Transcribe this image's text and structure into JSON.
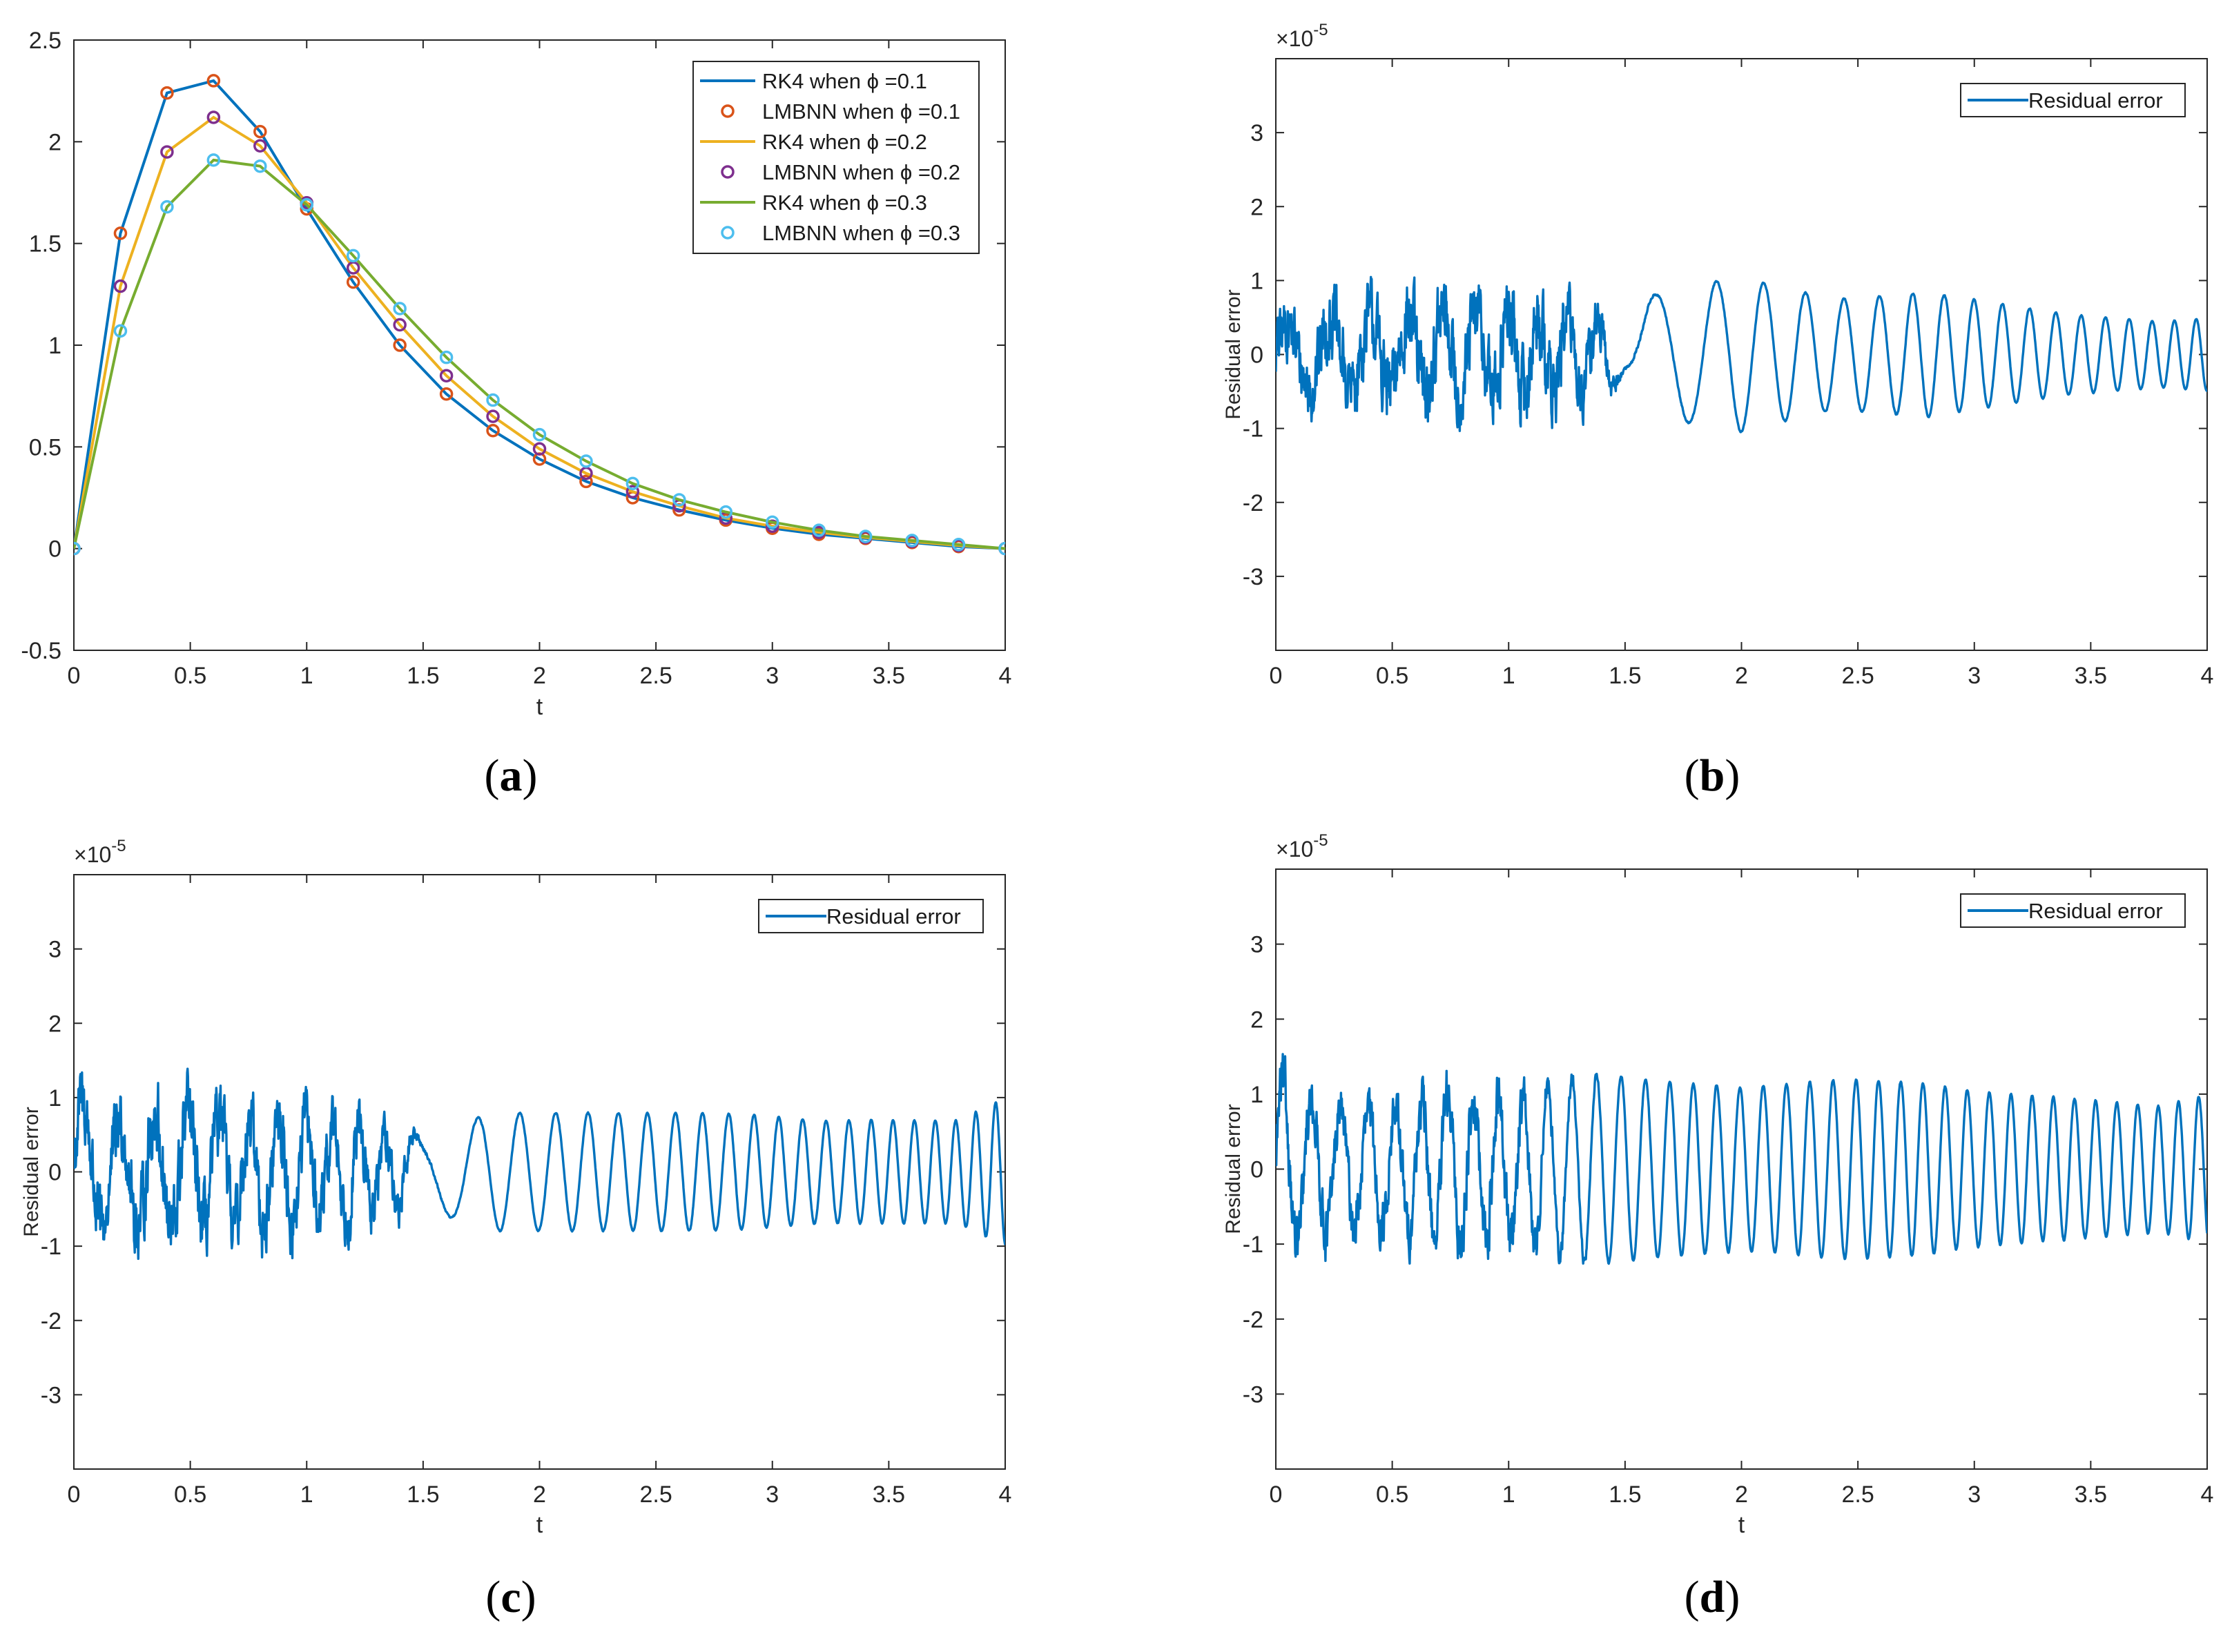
{
  "chart_data": [
    {
      "id": "a",
      "type": "line",
      "caption": "a",
      "title": "",
      "xlabel": "t",
      "ylabel": "",
      "xlim": [
        0,
        4
      ],
      "ylim": [
        -0.5,
        2.5
      ],
      "xticks": [
        0,
        0.5,
        1,
        1.5,
        2,
        2.5,
        3,
        3.5,
        4
      ],
      "xtick_labels": [
        "0",
        "0.5",
        "1",
        "1.5",
        "2",
        "2.5",
        "3",
        "3.5",
        "4"
      ],
      "yticks": [
        -0.5,
        0,
        0.5,
        1,
        1.5,
        2,
        2.5
      ],
      "ytick_labels": [
        "-0.5",
        "0",
        "0.5",
        "1",
        "1.5",
        "2",
        "2.5"
      ],
      "legend_position": "top-right",
      "x": [
        0,
        0.2,
        0.4,
        0.6,
        0.8,
        1.0,
        1.2,
        1.4,
        1.6,
        1.8,
        2.0,
        2.2,
        2.4,
        2.6,
        2.8,
        3.0,
        3.2,
        3.4,
        3.6,
        3.8,
        4.0
      ],
      "series": [
        {
          "name": "RK4 when ϕ =0.1",
          "style": "line",
          "color": "#0072BD",
          "values": [
            0,
            1.55,
            2.24,
            2.3,
            2.05,
            1.67,
            1.31,
            1.0,
            0.76,
            0.58,
            0.44,
            0.33,
            0.25,
            0.19,
            0.14,
            0.1,
            0.07,
            0.05,
            0.03,
            0.01,
            0
          ]
        },
        {
          "name": "LMBNN when ϕ =0.1",
          "style": "marker",
          "color": "#D95319",
          "values": [
            0,
            1.55,
            2.24,
            2.3,
            2.05,
            1.67,
            1.31,
            1.0,
            0.76,
            0.58,
            0.44,
            0.33,
            0.25,
            0.19,
            0.14,
            0.1,
            0.07,
            0.05,
            0.03,
            0.01,
            0
          ]
        },
        {
          "name": "RK4 when ϕ =0.2",
          "style": "line",
          "color": "#EDB120",
          "values": [
            0,
            1.29,
            1.95,
            2.12,
            1.98,
            1.7,
            1.38,
            1.1,
            0.85,
            0.65,
            0.49,
            0.37,
            0.28,
            0.21,
            0.15,
            0.11,
            0.08,
            0.055,
            0.035,
            0.015,
            0
          ]
        },
        {
          "name": "LMBNN when ϕ =0.2",
          "style": "marker",
          "color": "#7E2F8E",
          "values": [
            0,
            1.29,
            1.95,
            2.12,
            1.98,
            1.7,
            1.38,
            1.1,
            0.85,
            0.65,
            0.49,
            0.37,
            0.28,
            0.21,
            0.15,
            0.11,
            0.08,
            0.055,
            0.035,
            0.015,
            0
          ]
        },
        {
          "name": "RK4 when ϕ =0.3",
          "style": "line",
          "color": "#77AC30",
          "values": [
            0,
            1.07,
            1.68,
            1.91,
            1.88,
            1.69,
            1.44,
            1.18,
            0.94,
            0.73,
            0.56,
            0.43,
            0.32,
            0.24,
            0.18,
            0.13,
            0.09,
            0.06,
            0.04,
            0.02,
            0
          ]
        },
        {
          "name": "LMBNN when ϕ =0.3",
          "style": "marker",
          "color": "#4DBEEE",
          "values": [
            0,
            1.07,
            1.68,
            1.91,
            1.88,
            1.69,
            1.44,
            1.18,
            0.94,
            0.73,
            0.56,
            0.43,
            0.32,
            0.24,
            0.18,
            0.13,
            0.09,
            0.06,
            0.04,
            0.02,
            0
          ]
        }
      ]
    },
    {
      "id": "b",
      "type": "line",
      "caption": "b",
      "title": "",
      "xlabel": "",
      "ylabel": "Residual error",
      "exponent_label": "×10",
      "exponent_power": "-5",
      "xlim": [
        0,
        4
      ],
      "ylim": [
        -4,
        4
      ],
      "xticks": [
        0,
        0.5,
        1,
        1.5,
        2,
        2.5,
        3,
        3.5,
        4
      ],
      "xtick_labels": [
        "0",
        "0.5",
        "1",
        "1.5",
        "2",
        "2.5",
        "3",
        "3.5",
        "4"
      ],
      "yticks": [
        -3,
        -2,
        -1,
        0,
        1,
        2,
        3
      ],
      "ytick_labels": [
        "-3",
        "-2",
        "-1",
        "0",
        "1",
        "2",
        "3"
      ],
      "legend_position": "top-right",
      "series": [
        {
          "name": "Residual error",
          "color": "#0072BD",
          "description": "noisy oscillation up to t=1.5 then smooth sinusoid, amplitude about 1e-5",
          "x_knots": [
            0,
            0.2,
            0.4,
            0.6,
            0.8,
            1.0,
            1.2,
            1.4,
            1.5,
            1.6,
            1.8,
            2.0,
            2.2,
            2.4,
            2.6,
            2.8,
            3.0,
            3.2,
            3.4,
            3.6,
            3.8,
            4.0
          ],
          "envelope": [
            0.7,
            0.85,
            0.9,
            1.0,
            0.95,
            1.0,
            0.9,
            0.7,
            0.35,
            0.8,
            0.95,
            1.05,
            0.9,
            0.75,
            0.8,
            0.85,
            0.75,
            0.65,
            0.55,
            0.5,
            0.45,
            0.5
          ],
          "noise": [
            0.9,
            0.9,
            0.9,
            0.9,
            0.9,
            0.9,
            0.9,
            0.8,
            0.1,
            0.03,
            0.02,
            0.02,
            0.02,
            0.02,
            0.02,
            0.02,
            0.02,
            0.02,
            0.02,
            0.02,
            0.02,
            0.02
          ],
          "freq_knots": [
            5.0,
            5.5,
            6.0,
            6.5,
            7.0,
            7.5,
            8.0,
            8.0,
            2.0,
            3.0,
            4.0,
            5.0,
            5.6,
            6.2,
            6.8,
            7.4,
            8.0,
            8.6,
            9.2,
            9.8,
            10.4,
            11.0
          ]
        }
      ]
    },
    {
      "id": "c",
      "type": "line",
      "caption": "c",
      "title": "",
      "xlabel": "t",
      "ylabel": "Residual error",
      "exponent_label": "×10",
      "exponent_power": "-5",
      "xlim": [
        0,
        4
      ],
      "ylim": [
        -4,
        4
      ],
      "xticks": [
        0,
        0.5,
        1,
        1.5,
        2,
        2.5,
        3,
        3.5,
        4
      ],
      "xtick_labels": [
        "0",
        "0.5",
        "1",
        "1.5",
        "2",
        "2.5",
        "3",
        "3.5",
        "4"
      ],
      "yticks": [
        -3,
        -2,
        -1,
        0,
        1,
        2,
        3
      ],
      "ytick_labels": [
        "-3",
        "-2",
        "-1",
        "0",
        "1",
        "2",
        "3"
      ],
      "legend_position": "top-right",
      "series": [
        {
          "name": "Residual error",
          "color": "#0072BD",
          "description": "noisy oscillation up to t=1.5 then smooth sinusoid, amplitude about 0.8e-5",
          "x_knots": [
            0,
            0.2,
            0.4,
            0.6,
            0.8,
            1.0,
            1.2,
            1.4,
            1.5,
            1.6,
            1.8,
            2.0,
            2.2,
            2.4,
            2.6,
            2.8,
            3.0,
            3.2,
            3.4,
            3.6,
            3.8,
            4.0
          ],
          "envelope": [
            1.4,
            1.0,
            1.3,
            1.1,
            1.1,
            1.0,
            0.9,
            0.7,
            0.5,
            0.6,
            0.8,
            0.8,
            0.8,
            0.8,
            0.8,
            0.8,
            0.75,
            0.7,
            0.7,
            0.7,
            0.7,
            1.0
          ],
          "noise": [
            0.6,
            0.7,
            0.7,
            0.7,
            0.7,
            0.7,
            0.7,
            0.6,
            0.1,
            0.03,
            0.02,
            0.02,
            0.02,
            0.02,
            0.02,
            0.02,
            0.02,
            0.02,
            0.02,
            0.02,
            0.02,
            0.02
          ],
          "freq_knots": [
            6.0,
            6.5,
            7.0,
            7.5,
            8.0,
            8.5,
            9.0,
            9.0,
            2.5,
            3.5,
            5.5,
            6.5,
            7.5,
            8.0,
            8.5,
            9.0,
            9.5,
            10.0,
            10.5,
            11.0,
            11.5,
            12.0
          ]
        }
      ]
    },
    {
      "id": "d",
      "type": "line",
      "caption": "d",
      "title": "",
      "xlabel": "t",
      "ylabel": "Residual error",
      "exponent_label": "×10",
      "exponent_power": "-5",
      "xlim": [
        0,
        4
      ],
      "ylim": [
        -4,
        4
      ],
      "xticks": [
        0,
        0.5,
        1,
        1.5,
        2,
        2.5,
        3,
        3.5,
        4
      ],
      "xtick_labels": [
        "0",
        "0.5",
        "1",
        "1.5",
        "2",
        "2.5",
        "3",
        "3.5",
        "4"
      ],
      "yticks": [
        -3,
        -2,
        -1,
        0,
        1,
        2,
        3
      ],
      "ytick_labels": [
        "-3",
        "-2",
        "-1",
        "0",
        "1",
        "2",
        "3"
      ],
      "legend_position": "top-right",
      "series": [
        {
          "name": "Residual error",
          "color": "#0072BD",
          "description": "partly noisy oscillation to t=1.2 then smooth sinusoid, amplitude about 1.2e-5",
          "x_knots": [
            0,
            0.2,
            0.4,
            0.6,
            0.8,
            1.0,
            1.2,
            1.4,
            1.6,
            1.8,
            2.0,
            2.2,
            2.4,
            2.6,
            2.8,
            3.0,
            3.2,
            3.4,
            3.6,
            3.8,
            4.0
          ],
          "envelope": [
            1.5,
            1.1,
            1.0,
            1.1,
            1.3,
            1.2,
            1.3,
            1.3,
            1.2,
            1.15,
            1.1,
            1.15,
            1.2,
            1.2,
            1.15,
            1.05,
            1.0,
            0.95,
            0.9,
            0.85,
            1.0
          ],
          "noise": [
            0.4,
            0.5,
            0.5,
            0.5,
            0.5,
            0.5,
            0.2,
            0.03,
            0.02,
            0.02,
            0.02,
            0.02,
            0.02,
            0.02,
            0.02,
            0.02,
            0.02,
            0.02,
            0.02,
            0.02,
            0.02
          ],
          "freq_knots": [
            8.0,
            8.0,
            8.5,
            9.0,
            9.0,
            9.5,
            9.5,
            9.5,
            9.5,
            10.0,
            10.0,
            10.0,
            10.0,
            10.5,
            10.5,
            10.5,
            11.0,
            11.0,
            11.0,
            11.5,
            11.5
          ]
        }
      ]
    }
  ]
}
